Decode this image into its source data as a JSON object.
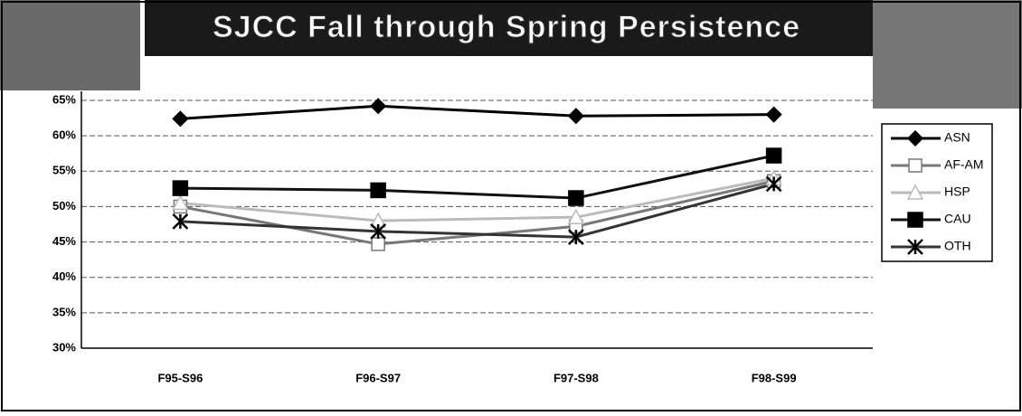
{
  "chart_data": {
    "type": "line",
    "title": "SJCC Fall through Spring Persistence",
    "categories": [
      "F95-S96",
      "F96-S97",
      "F97-S98",
      "F98-S99"
    ],
    "series": [
      {
        "name": "ASN",
        "color": "#000000",
        "marker": "diamond",
        "values": [
          62.4,
          64.2,
          62.8,
          63.0
        ]
      },
      {
        "name": "AF-AM",
        "color": "#777777",
        "marker": "square-open",
        "values": [
          50.0,
          44.7,
          47.2,
          53.6
        ]
      },
      {
        "name": "HSP",
        "color": "#bbbbbb",
        "marker": "triangle-open",
        "values": [
          50.5,
          48.0,
          48.5,
          54.0
        ]
      },
      {
        "name": "CAU",
        "color": "#111111",
        "marker": "square",
        "values": [
          52.6,
          52.3,
          51.2,
          57.2
        ]
      },
      {
        "name": "OTH",
        "color": "#333333",
        "marker": "asterisk",
        "values": [
          47.9,
          46.5,
          45.7,
          53.2
        ]
      }
    ],
    "ylim": [
      30,
      65
    ],
    "yticks": [
      {
        "value": 30,
        "label": "30%"
      },
      {
        "value": 35,
        "label": "35%"
      },
      {
        "value": 40,
        "label": "40%"
      },
      {
        "value": 45,
        "label": "45%"
      },
      {
        "value": 50,
        "label": "50%"
      },
      {
        "value": 55,
        "label": "55%"
      },
      {
        "value": 60,
        "label": "60%"
      },
      {
        "value": 65,
        "label": "65%"
      }
    ],
    "grid": true,
    "legend": "right"
  }
}
